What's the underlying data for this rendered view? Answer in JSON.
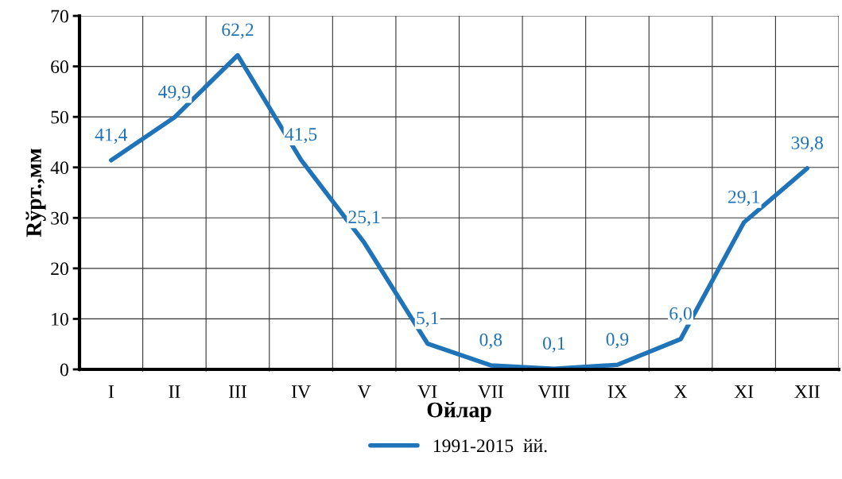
{
  "chart_data": {
    "type": "line",
    "xlabel": "Ойлар",
    "ylabel": "Rўрт.,мм",
    "categories": [
      "I",
      "II",
      "III",
      "IV",
      "V",
      "VI",
      "VII",
      "VIII",
      "IX",
      "X",
      "XI",
      "XII"
    ],
    "series": [
      {
        "name": "1991-2015  йй.",
        "color": "#1f73b8",
        "values": [
          41.4,
          49.9,
          62.2,
          41.5,
          25.1,
          5.1,
          0.8,
          0.1,
          0.9,
          6.0,
          29.1,
          39.8
        ],
        "value_labels": [
          "41,4",
          "49,9",
          "62,2",
          "41,5",
          "25,1",
          "5,1",
          "0,8",
          "0,1",
          "0,9",
          "6,0",
          "29,1",
          "39,8"
        ]
      }
    ],
    "ylim": [
      0,
      70
    ],
    "yticks": [
      0,
      10,
      20,
      30,
      40,
      50,
      60,
      70
    ],
    "grid": true,
    "legend": "bottom",
    "marker": "none",
    "line_style": "solid"
  }
}
